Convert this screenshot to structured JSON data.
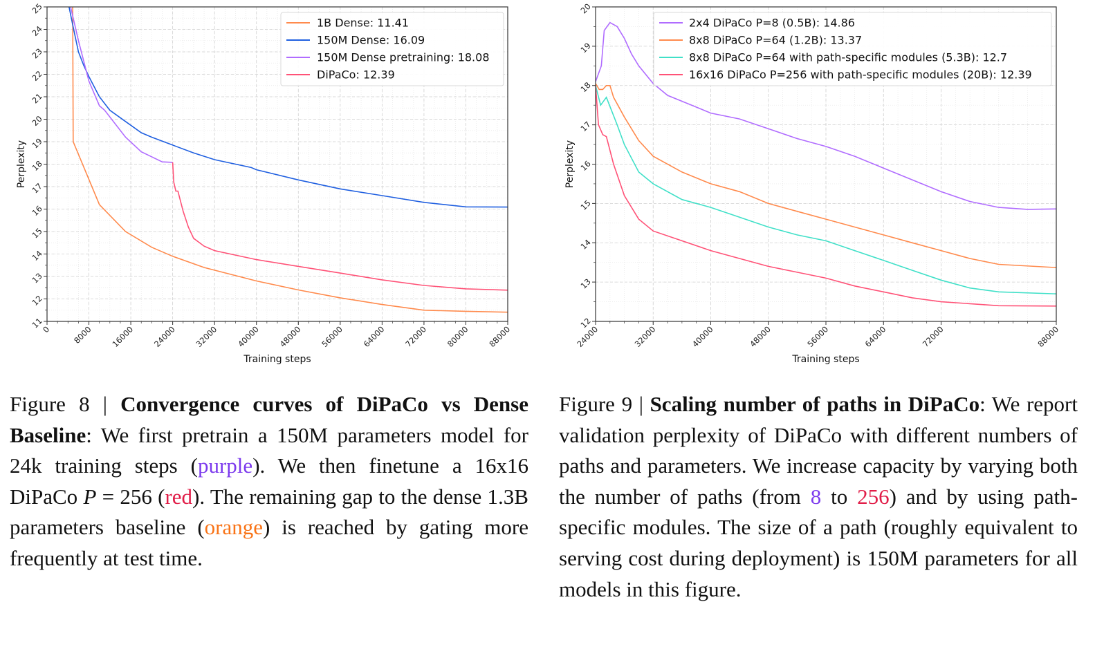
{
  "chart_data": [
    {
      "type": "line",
      "title": "",
      "xlabel": "Training steps",
      "ylabel": "Perplexity",
      "xlim": [
        0,
        88000
      ],
      "ylim": [
        11,
        25
      ],
      "xticks": [
        0,
        8000,
        16000,
        24000,
        32000,
        40000,
        48000,
        56000,
        64000,
        72000,
        80000,
        88000
      ],
      "yticks": [
        11,
        12,
        13,
        14,
        15,
        16,
        17,
        18,
        19,
        20,
        21,
        22,
        23,
        24,
        25
      ],
      "grid": true,
      "legend_position": "top-right",
      "series": [
        {
          "name": "1B Dense: 11.41",
          "color": "#ff8a4c",
          "x": [
            4900,
            5000,
            10000,
            15000,
            20000,
            24000,
            30000,
            40000,
            48000,
            56000,
            64000,
            72000,
            80000,
            88000
          ],
          "y": [
            25,
            19.0,
            16.2,
            15.0,
            14.3,
            13.9,
            13.4,
            12.8,
            12.4,
            12.05,
            11.75,
            11.5,
            11.45,
            11.41
          ]
        },
        {
          "name": "150M Dense: 16.09",
          "color": "#1f5fe0",
          "x": [
            4200,
            5000,
            6000,
            7000,
            8000,
            10000,
            12000,
            15000,
            18000,
            20000,
            24000,
            28000,
            32000,
            39000,
            40000,
            48000,
            56000,
            64000,
            72000,
            80000,
            88000
          ],
          "y": [
            25,
            24.1,
            23.0,
            22.4,
            21.9,
            21.0,
            20.4,
            19.9,
            19.4,
            19.2,
            18.85,
            18.5,
            18.2,
            17.85,
            17.75,
            17.3,
            16.9,
            16.6,
            16.3,
            16.1,
            16.09
          ]
        },
        {
          "name": "150M Dense pretraining: 18.08",
          "color": "#b06cff",
          "x": [
            4500,
            6000,
            8000,
            10000,
            11000,
            15000,
            18000,
            22000,
            24000
          ],
          "y": [
            25,
            23.5,
            21.7,
            20.6,
            20.4,
            19.2,
            18.55,
            18.1,
            18.08
          ]
        },
        {
          "name": "DiPaCo: 12.39",
          "color": "#ff5277",
          "x": [
            24000,
            24200,
            24600,
            25000,
            26000,
            27000,
            28000,
            30000,
            32000,
            36000,
            40000,
            48000,
            56000,
            64000,
            72000,
            80000,
            88000
          ],
          "y": [
            18.08,
            17.2,
            16.8,
            16.8,
            15.9,
            15.2,
            14.7,
            14.35,
            14.15,
            13.95,
            13.75,
            13.45,
            13.15,
            12.85,
            12.6,
            12.45,
            12.39
          ]
        }
      ]
    },
    {
      "type": "line",
      "title": "",
      "xlabel": "Training steps",
      "ylabel": "Perplexity",
      "xlim": [
        24000,
        88000
      ],
      "ylim": [
        12,
        20
      ],
      "xticks": [
        24000,
        32000,
        40000,
        48000,
        56000,
        64000,
        72000,
        88000
      ],
      "yticks": [
        12,
        13,
        14,
        15,
        16,
        17,
        18,
        19,
        20
      ],
      "grid": true,
      "legend_position": "top-right",
      "series": [
        {
          "name": "2x4 DiPaCo P=8 (0.5B): 14.86",
          "color": "#b06cff",
          "x": [
            24000,
            24800,
            25200,
            26000,
            27000,
            28000,
            29000,
            30000,
            32000,
            34000,
            36000,
            38000,
            40000,
            44000,
            48000,
            52000,
            56000,
            60000,
            64000,
            68000,
            72000,
            76000,
            80000,
            84000,
            88000
          ],
          "y": [
            18.1,
            18.5,
            19.4,
            19.6,
            19.5,
            19.2,
            18.8,
            18.5,
            18.05,
            17.75,
            17.6,
            17.45,
            17.3,
            17.15,
            16.9,
            16.65,
            16.45,
            16.2,
            15.9,
            15.6,
            15.3,
            15.05,
            14.9,
            14.85,
            14.86
          ]
        },
        {
          "name": "8x8 DiPaCo P=64 (1.2B): 13.37",
          "color": "#ff8a4c",
          "x": [
            24000,
            24500,
            25000,
            25500,
            26000,
            26500,
            28000,
            30000,
            32000,
            36000,
            40000,
            44000,
            48000,
            52000,
            56000,
            60000,
            64000,
            68000,
            72000,
            76000,
            80000,
            88000
          ],
          "y": [
            18.05,
            17.9,
            17.9,
            18.0,
            18.0,
            17.7,
            17.2,
            16.6,
            16.2,
            15.8,
            15.5,
            15.3,
            15.0,
            14.8,
            14.6,
            14.4,
            14.2,
            14.0,
            13.8,
            13.6,
            13.45,
            13.37
          ]
        },
        {
          "name": "8x8 DiPaCo P=64 with path-specific modules (5.3B): 12.7",
          "color": "#40e0c8",
          "x": [
            24000,
            24700,
            25500,
            27000,
            28000,
            30000,
            32000,
            36000,
            40000,
            44000,
            48000,
            52000,
            56000,
            60000,
            64000,
            68000,
            72000,
            76000,
            80000,
            88000
          ],
          "y": [
            18.0,
            17.5,
            17.7,
            17.0,
            16.5,
            15.8,
            15.5,
            15.1,
            14.9,
            14.65,
            14.4,
            14.2,
            14.05,
            13.8,
            13.55,
            13.3,
            13.05,
            12.85,
            12.75,
            12.7
          ]
        },
        {
          "name": "16x16 DiPaCo P=256 with path-specific modules (20B): 12.39",
          "color": "#ff5277",
          "x": [
            24000,
            24400,
            25000,
            25500,
            26500,
            28000,
            30000,
            32000,
            36000,
            40000,
            44000,
            48000,
            52000,
            56000,
            60000,
            64000,
            68000,
            72000,
            76000,
            80000,
            88000
          ],
          "y": [
            18.0,
            17.0,
            16.75,
            16.7,
            16.0,
            15.2,
            14.6,
            14.3,
            14.05,
            13.8,
            13.6,
            13.4,
            13.25,
            13.1,
            12.9,
            12.75,
            12.6,
            12.5,
            12.45,
            12.4,
            12.39
          ]
        }
      ]
    }
  ],
  "captions": {
    "fig8": {
      "label": "Figure 8 | ",
      "bold": "Convergence curves of DiPaCo vs Dense Baseline",
      "t1": ": We first pretrain a 150M parameters model for 24k training steps (",
      "purple": "purple",
      "t2": "). We then finetune a 16x16 DiPaCo ",
      "math": "P",
      "t3": " = 256 (",
      "red": "red",
      "t4": "). The remaining gap to the dense 1.3B parameters baseline (",
      "orange": "orange",
      "t5": ") is reached by gating more frequently at test time."
    },
    "fig9": {
      "label": "Figure 9 | ",
      "bold": "Scaling number of paths in DiPaCo",
      "t1": ": We report validation perplexity of DiPaCo with different numbers of paths and parameters. We increase capacity by varying both the number of paths (from ",
      "n8": "8",
      "t2": " to ",
      "n256": "256",
      "t3": ") and by using path-specific modules. The size of a path (roughly equivalent to serving cost during deployment) is 150M parameters for all models in this figure."
    }
  }
}
